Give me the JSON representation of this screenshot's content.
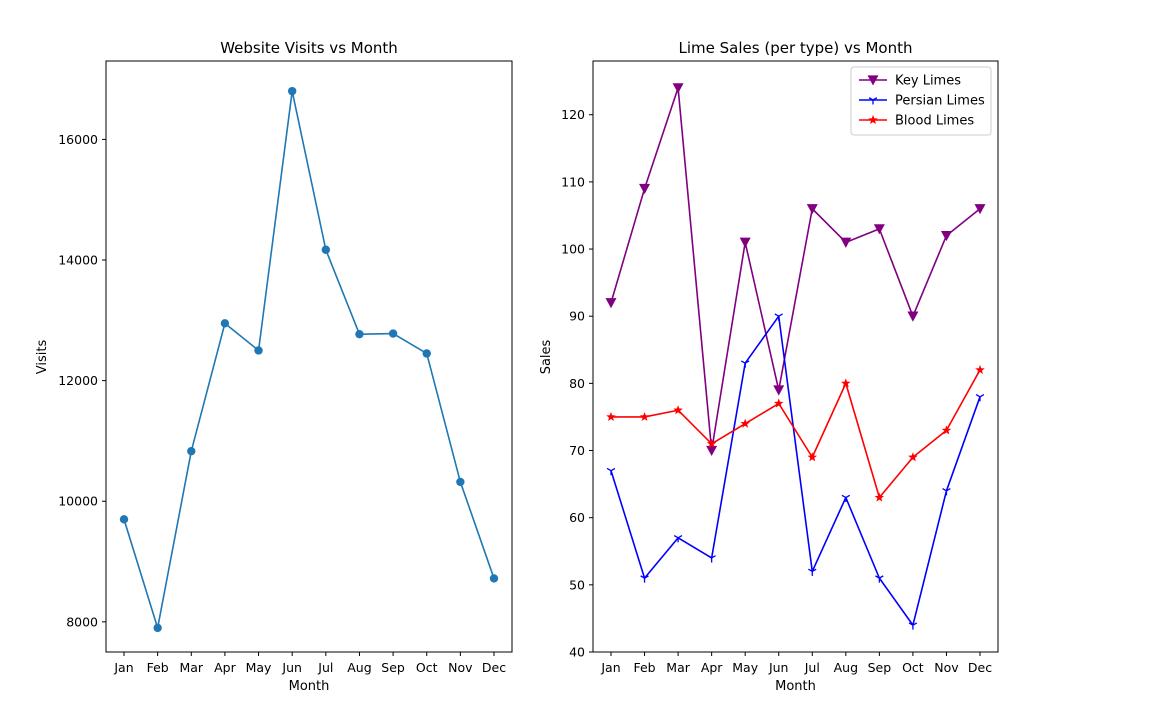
{
  "chart_data": [
    {
      "type": "line",
      "title": "Website Visits vs Month",
      "xlabel": "Month",
      "ylabel": "Visits",
      "categories": [
        "Jan",
        "Feb",
        "Mar",
        "Apr",
        "May",
        "Jun",
        "Jul",
        "Aug",
        "Sep",
        "Oct",
        "Nov",
        "Dec"
      ],
      "ylim": [
        7500,
        17300
      ],
      "yticks": [
        8000,
        10000,
        12000,
        14000,
        16000
      ],
      "grid": false,
      "series": [
        {
          "values": [
            9700,
            7900,
            10830,
            12950,
            12500,
            16800,
            14170,
            12770,
            12780,
            12450,
            10320,
            8720
          ],
          "color": "#1f77b4",
          "marker": "circle"
        }
      ]
    },
    {
      "type": "line",
      "title": "Lime Sales (per type) vs Month",
      "xlabel": "Month",
      "ylabel": "Sales",
      "categories": [
        "Jan",
        "Feb",
        "Mar",
        "Apr",
        "May",
        "Jun",
        "Jul",
        "Aug",
        "Sep",
        "Oct",
        "Nov",
        "Dec"
      ],
      "ylim": [
        40,
        128
      ],
      "yticks": [
        40,
        50,
        60,
        70,
        80,
        90,
        100,
        110,
        120
      ],
      "grid": false,
      "legend": "top-right",
      "series": [
        {
          "name": "Key Limes",
          "values": [
            92,
            109,
            124,
            70,
            101,
            79,
            106,
            101,
            103,
            90,
            102,
            106
          ],
          "color": "#800080",
          "marker": "triangle-down"
        },
        {
          "name": "Persian Limes",
          "values": [
            67,
            51,
            57,
            54,
            83,
            90,
            52,
            63,
            51,
            44,
            64,
            78
          ],
          "color": "#0000ff",
          "marker": "tri-down"
        },
        {
          "name": "Blood Limes",
          "values": [
            75,
            75,
            76,
            71,
            74,
            77,
            69,
            80,
            63,
            69,
            73,
            82
          ],
          "color": "#ff0000",
          "marker": "star"
        }
      ]
    }
  ]
}
